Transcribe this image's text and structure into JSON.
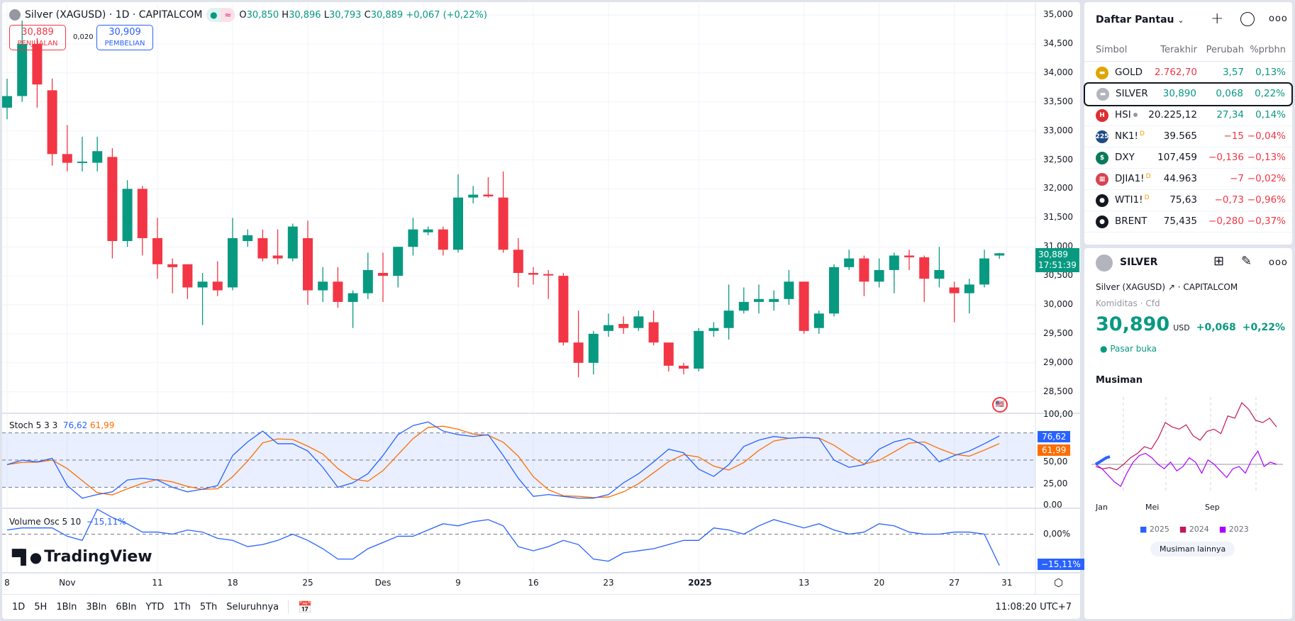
{
  "header": {
    "symbol_title": "Silver (XAGUSD) · 1D · CAPITALCOM",
    "ohlc": {
      "o_label": "O",
      "o": "30,850",
      "h_label": "H",
      "h": "30,896",
      "l_label": "L",
      "l": "30,793",
      "c_label": "C",
      "c": "30,889",
      "change": "+0,067 (+0,22%)"
    },
    "sell": {
      "price": "30,889",
      "label": "PENJUALAN"
    },
    "spread": "0,020",
    "buy": {
      "price": "30,909",
      "label": "PEMBELIAN"
    }
  },
  "price_axis": {
    "ticks": [
      "35,000",
      "34,500",
      "34,000",
      "33,500",
      "33,000",
      "32,500",
      "32,000",
      "31,500",
      "31,000",
      "30,500",
      "30,000",
      "29,500",
      "29,000",
      "28,500"
    ],
    "last_price": "30,889",
    "countdown": "17:51:39"
  },
  "stoch": {
    "title": "Stoch 5 3 3",
    "k_value": "76,62",
    "d_value": "61,99",
    "ticks": [
      "100,00",
      "50,00",
      "25,00",
      "0.00"
    ],
    "colors": {
      "k": "#2962ff",
      "d": "#ff6d00"
    }
  },
  "volosc": {
    "title": "Volume Osc 5 10",
    "value": "−15,11%",
    "zero_tick": "0,00%"
  },
  "time_axis": {
    "labels": [
      {
        "t": "8",
        "i": 0
      },
      {
        "t": "Nov",
        "i": 4
      },
      {
        "t": "11",
        "i": 10
      },
      {
        "t": "18",
        "i": 15
      },
      {
        "t": "25",
        "i": 20
      },
      {
        "t": "Des",
        "i": 25
      },
      {
        "t": "9",
        "i": 30
      },
      {
        "t": "16",
        "i": 35
      },
      {
        "t": "23",
        "i": 40
      },
      {
        "t": "2025",
        "i": 46
      },
      {
        "t": "13",
        "i": 53
      },
      {
        "t": "20",
        "i": 58
      },
      {
        "t": "27",
        "i": 63
      },
      {
        "t": "31",
        "i": 66.5
      }
    ]
  },
  "logo": "TradingView",
  "toolbar": {
    "ranges": [
      "1D",
      "5H",
      "1Bln",
      "3Bln",
      "6Bln",
      "YTD",
      "1Th",
      "5Th",
      "Seluruhnya"
    ],
    "clock": "11:08:20 UTC+7"
  },
  "chart_data": {
    "type": "candlestick",
    "colors": {
      "up": "#089981",
      "down": "#f23645"
    },
    "ohlc": [
      [
        33.4,
        33.9,
        33.2,
        33.6
      ],
      [
        33.6,
        34.9,
        33.5,
        34.5
      ],
      [
        34.5,
        34.6,
        33.4,
        33.8
      ],
      [
        33.7,
        33.9,
        32.4,
        32.6
      ],
      [
        32.6,
        33.1,
        32.3,
        32.45
      ],
      [
        32.45,
        32.9,
        32.3,
        32.47
      ],
      [
        32.45,
        32.9,
        32.3,
        32.65
      ],
      [
        32.55,
        32.7,
        30.8,
        31.1
      ],
      [
        31.1,
        32.15,
        31.0,
        32.0
      ],
      [
        32.0,
        32.05,
        30.85,
        31.15
      ],
      [
        31.15,
        31.5,
        30.45,
        30.7
      ],
      [
        30.7,
        30.8,
        30.2,
        30.65
      ],
      [
        30.7,
        30.7,
        30.1,
        30.3
      ],
      [
        30.3,
        30.55,
        29.65,
        30.4
      ],
      [
        30.4,
        30.75,
        30.15,
        30.25
      ],
      [
        30.3,
        31.5,
        30.25,
        31.15
      ],
      [
        31.1,
        31.3,
        31.0,
        31.2
      ],
      [
        31.15,
        31.3,
        30.75,
        30.8
      ],
      [
        30.85,
        31.3,
        30.7,
        30.8
      ],
      [
        30.8,
        31.4,
        30.75,
        31.35
      ],
      [
        31.15,
        31.45,
        30.0,
        30.25
      ],
      [
        30.25,
        30.65,
        30.05,
        30.4
      ],
      [
        30.4,
        30.65,
        29.95,
        30.05
      ],
      [
        30.05,
        30.25,
        29.6,
        30.2
      ],
      [
        30.2,
        30.9,
        30.1,
        30.6
      ],
      [
        30.55,
        30.9,
        30.05,
        30.5
      ],
      [
        30.5,
        31.0,
        30.3,
        31.0
      ],
      [
        31.0,
        31.5,
        30.85,
        31.3
      ],
      [
        31.25,
        31.35,
        31.2,
        31.3
      ],
      [
        31.3,
        31.35,
        30.85,
        30.95
      ],
      [
        30.95,
        32.25,
        30.9,
        31.85
      ],
      [
        31.85,
        32.05,
        31.75,
        31.9
      ],
      [
        31.9,
        32.2,
        31.85,
        31.87
      ],
      [
        31.85,
        32.3,
        30.9,
        30.95
      ],
      [
        30.95,
        31.15,
        30.3,
        30.55
      ],
      [
        30.55,
        30.65,
        30.35,
        30.52
      ],
      [
        30.53,
        30.6,
        30.1,
        30.51
      ],
      [
        30.5,
        30.55,
        29.3,
        29.35
      ],
      [
        29.35,
        29.9,
        28.75,
        29.0
      ],
      [
        29.0,
        29.55,
        28.8,
        29.5
      ],
      [
        29.55,
        29.85,
        29.45,
        29.65
      ],
      [
        29.67,
        29.8,
        29.5,
        29.6
      ],
      [
        29.6,
        29.9,
        29.55,
        29.8
      ],
      [
        29.7,
        29.9,
        29.3,
        29.35
      ],
      [
        29.35,
        29.35,
        28.85,
        28.95
      ],
      [
        28.95,
        29.0,
        28.8,
        28.9
      ],
      [
        28.9,
        29.6,
        28.85,
        29.55
      ],
      [
        29.55,
        29.7,
        29.45,
        29.6
      ],
      [
        29.6,
        30.35,
        29.4,
        29.9
      ],
      [
        29.9,
        30.3,
        29.85,
        30.05
      ],
      [
        30.05,
        30.35,
        29.85,
        30.1
      ],
      [
        30.05,
        30.25,
        29.9,
        30.1
      ],
      [
        30.1,
        30.6,
        30.0,
        30.4
      ],
      [
        30.4,
        30.4,
        29.5,
        29.55
      ],
      [
        29.6,
        29.9,
        29.5,
        29.85
      ],
      [
        29.85,
        30.7,
        29.8,
        30.65
      ],
      [
        30.65,
        30.95,
        30.6,
        30.8
      ],
      [
        30.8,
        30.85,
        30.15,
        30.4
      ],
      [
        30.4,
        30.8,
        30.3,
        30.6
      ],
      [
        30.6,
        30.9,
        30.2,
        30.85
      ],
      [
        30.85,
        30.95,
        30.6,
        30.82
      ],
      [
        30.82,
        30.85,
        30.05,
        30.45
      ],
      [
        30.45,
        31.0,
        30.3,
        30.6
      ],
      [
        30.3,
        30.4,
        29.7,
        30.2
      ],
      [
        30.2,
        30.45,
        29.85,
        30.35
      ],
      [
        30.35,
        30.95,
        30.3,
        30.8
      ],
      [
        30.85,
        30.896,
        30.793,
        30.889
      ]
    ],
    "price_range": [
      28.3,
      35.25
    ],
    "stoch_k": [
      45,
      50,
      48,
      52,
      22,
      8,
      12,
      15,
      28,
      30,
      28,
      20,
      15,
      18,
      22,
      55,
      70,
      82,
      68,
      68,
      60,
      42,
      20,
      25,
      35,
      55,
      78,
      88,
      92,
      82,
      78,
      76,
      78,
      55,
      30,
      10,
      12,
      10,
      8,
      8,
      12,
      25,
      35,
      48,
      62,
      58,
      40,
      32,
      45,
      65,
      72,
      76,
      74,
      75,
      74,
      50,
      42,
      45,
      62,
      70,
      74,
      66,
      48,
      55,
      60,
      68,
      76.62
    ],
    "stoch_d_smoothing": 3,
    "stoch_bands": [
      80,
      50,
      20
    ],
    "volume_osc": [
      2,
      3,
      3,
      3,
      -1,
      -3,
      12,
      8,
      5,
      1,
      1,
      0,
      2,
      1,
      -2,
      -3,
      -6,
      -5,
      -3,
      0,
      -3,
      -7,
      -12,
      -12,
      -7,
      -4,
      -1,
      -1,
      2,
      5,
      4,
      6,
      7,
      4,
      -6,
      -8,
      -6,
      -3,
      -5,
      -12,
      -13,
      -9,
      -8,
      -7,
      -5,
      -3,
      -3,
      3,
      2,
      0,
      4,
      7,
      5,
      3,
      5,
      2,
      0,
      1,
      5,
      4,
      1,
      0,
      0,
      1,
      1,
      0,
      -15.11
    ]
  },
  "watchlist": {
    "title": "Daftar Pantau",
    "columns": [
      "Simbol",
      "Terakhir",
      "Perubah",
      "%prbhn"
    ],
    "rows": [
      {
        "symbol": "GOLD",
        "icon": "gold-bar-icon",
        "icon_color": "#e0a500",
        "icon_text": "▬",
        "last": "2.762,70",
        "last_color": "red",
        "change": "3,57",
        "pct": "0,13%",
        "dir": "up"
      },
      {
        "symbol": "SILVER",
        "icon": "silver-bar-icon",
        "icon_color": "#b2b5be",
        "icon_text": "▬",
        "last": "30,890",
        "last_color": "grn",
        "change": "0,068",
        "pct": "0,22%",
        "dir": "up",
        "selected": true
      },
      {
        "symbol": "HSI",
        "icon": "hsi-icon",
        "icon_color": "#e12d2d",
        "icon_text": "H",
        "last": "20.225,12",
        "last_color": "",
        "change": "27,34",
        "pct": "0,14%",
        "dir": "up",
        "dot": true
      },
      {
        "symbol": "NK1!",
        "icon": "nikkei-icon",
        "icon_color": "#1e4a86",
        "icon_text": "225",
        "last": "39.565",
        "last_color": "",
        "change": "−15",
        "pct": "−0,04%",
        "dir": "down",
        "delayed": "D"
      },
      {
        "symbol": "DXY",
        "icon": "dollar-icon",
        "icon_color": "#0a7b5a",
        "icon_text": "$",
        "last": "107,459",
        "last_color": "",
        "change": "−0,136",
        "pct": "−0,13%",
        "dir": "down"
      },
      {
        "symbol": "DJIA1!",
        "icon": "us-flag-icon",
        "icon_color": "#d8434f",
        "icon_text": "▦",
        "last": "44.963",
        "last_color": "",
        "change": "−7",
        "pct": "−0,02%",
        "dir": "down",
        "delayed": "D"
      },
      {
        "symbol": "WTI1!",
        "icon": "oil-drop-icon",
        "icon_color": "#131722",
        "icon_text": "●",
        "last": "75,63",
        "last_color": "",
        "change": "−0,73",
        "pct": "−0,96%",
        "dir": "down",
        "delayed": "D"
      },
      {
        "symbol": "BRENT",
        "icon": "oil-drop-icon",
        "icon_color": "#131722",
        "icon_text": "●",
        "last": "75,435",
        "last_color": "",
        "change": "−0,280",
        "pct": "−0,37%",
        "dir": "down"
      }
    ]
  },
  "details": {
    "symbol": "SILVER",
    "description": "Silver (XAGUSD)",
    "exchange": "CAPITALCOM",
    "category": "Komiditas",
    "type": "Cfd",
    "price": "30,890",
    "currency": "USD",
    "change": "+0,068",
    "change_pct": "+0,22%",
    "market_status": "Pasar buka",
    "seasonal": {
      "title": "Musiman",
      "months": [
        "Jan",
        "Mei",
        "Sep"
      ],
      "legend": [
        "2025",
        "2024",
        "2023"
      ],
      "colors": [
        "#2962ff",
        "#c2185b",
        "#aa00ff"
      ],
      "button": "Musiman lainnya",
      "series_2025": [
        0,
        1,
        2,
        3,
        3.5
      ],
      "series_2024": [
        -1,
        -2,
        -1.5,
        -2.5,
        0,
        3,
        5,
        8,
        7,
        12,
        19,
        17,
        16,
        18,
        13,
        11,
        15,
        16,
        14,
        22,
        21,
        28,
        25,
        20,
        19,
        21,
        17
      ],
      "series_2023": [
        0,
        -2,
        -5,
        -8,
        -10,
        -4,
        1,
        4,
        5,
        3,
        0,
        -2,
        1,
        -3,
        -1,
        3,
        1,
        -4,
        2,
        0,
        -3,
        -6,
        -2,
        -1,
        -4,
        2,
        6,
        -1,
        1,
        0
      ]
    }
  }
}
